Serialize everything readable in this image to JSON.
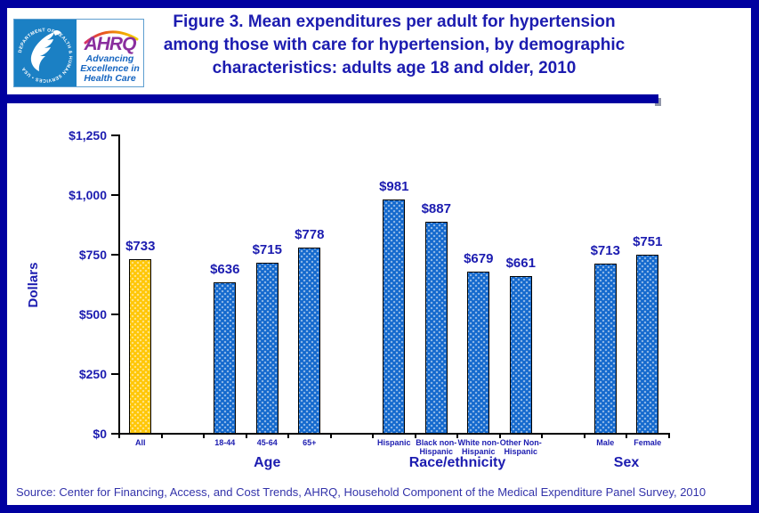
{
  "header": {
    "title_lines": [
      "Figure 3. Mean expenditures per adult for hypertension",
      "among those with care for hypertension, by demographic",
      "characteristics: adults age 18 and older, 2010"
    ],
    "logo": {
      "hhs_ring_text": "DEPARTMENT OF HEALTH & HUMAN SERVICES • USA",
      "ahrq_acronym": "AHRQ",
      "tagline_lines": [
        "Advancing",
        "Excellence in",
        "Health Care"
      ]
    }
  },
  "chart_data": {
    "type": "bar",
    "title": "Figure 3. Mean expenditures per adult for hypertension among those with care for hypertension, by demographic characteristics: adults age 18 and older, 2010",
    "xlabel": "",
    "ylabel": "Dollars",
    "ylim": [
      0,
      1250
    ],
    "ytick_values": [
      0,
      250,
      500,
      750,
      1000,
      1250
    ],
    "ytick_labels": [
      "$0",
      "$250",
      "$500",
      "$750",
      "$1,000",
      "$1,250"
    ],
    "grid": false,
    "legend": false,
    "bar_outline": "#000000",
    "groups": [
      {
        "label": "",
        "bars": [
          {
            "category": "All",
            "display": "All",
            "value": 733,
            "value_label": "$733",
            "color": "#FFC606"
          }
        ]
      },
      {
        "label": "Age",
        "bars": [
          {
            "category": "18-44",
            "display": "18-44",
            "value": 636,
            "value_label": "$636",
            "color": "#1469CD"
          },
          {
            "category": "45-64",
            "display": "45-64",
            "value": 715,
            "value_label": "$715",
            "color": "#1469CD"
          },
          {
            "category": "65+",
            "display": "65+",
            "value": 778,
            "value_label": "$778",
            "color": "#1469CD"
          }
        ]
      },
      {
        "label": "Race/ethnicity",
        "bars": [
          {
            "category": "Hispanic",
            "display": "Hispanic",
            "value": 981,
            "value_label": "$981",
            "color": "#1469CD"
          },
          {
            "category": "Black non-Hispanic",
            "display": "Black non-\nHispanic",
            "value": 887,
            "value_label": "$887",
            "color": "#1469CD"
          },
          {
            "category": "White non-Hispanic",
            "display": "White non-\nHispanic",
            "value": 679,
            "value_label": "$679",
            "color": "#1469CD"
          },
          {
            "category": "Other Non-Hispanic",
            "display": "Other Non-\nHispanic",
            "value": 661,
            "value_label": "$661",
            "color": "#1469CD"
          }
        ]
      },
      {
        "label": "Sex",
        "bars": [
          {
            "category": "Male",
            "display": "Male",
            "value": 713,
            "value_label": "$713",
            "color": "#1469CD"
          },
          {
            "category": "Female",
            "display": "Female",
            "value": 751,
            "value_label": "$751",
            "color": "#1469CD"
          }
        ]
      }
    ]
  },
  "footer": {
    "source": "Source: Center for Financing, Access, and Cost Trends, AHRQ, Household Component of the Medical Expenditure Panel Survey, 2010"
  },
  "colors": {
    "navy": "#0000A0",
    "text_blue": "#1C1CB0",
    "source_text": "#3333AA",
    "bar_blue": "#1469CD",
    "bar_gold": "#FFC606",
    "hhs_panel_blue": "#1B80C4",
    "ahrq_purple": "#8A2E9E",
    "tagline_blue": "#1565C0"
  }
}
